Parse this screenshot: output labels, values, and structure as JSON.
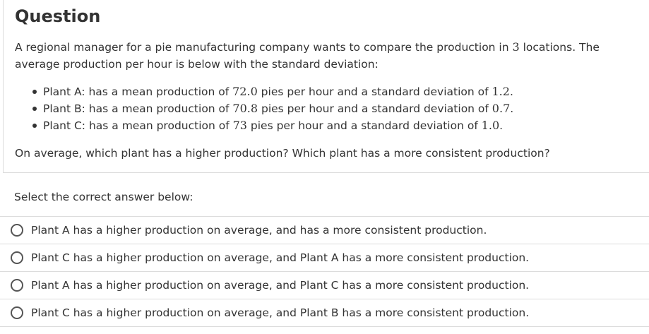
{
  "question": {
    "title": "Question",
    "intro_before": "A regional manager for a pie manufacturing company wants to compare the production in ",
    "intro_number": "3",
    "intro_after": " locations. The average production per hour is below with the standard deviation:",
    "plants": [
      {
        "prefix": "Plant A: has a mean production of ",
        "mean": "72.0",
        "middle": " pies per hour and a standard deviation of ",
        "sd": "1.2",
        "suffix": "."
      },
      {
        "prefix": "Plant B: has a mean production of ",
        "mean": "70.8",
        "middle": " pies per hour and a standard deviation of ",
        "sd": "0.7",
        "suffix": "."
      },
      {
        "prefix": "Plant C: has a mean production of ",
        "mean": "73",
        "middle": " pies per hour and a standard deviation of ",
        "sd": "1.0",
        "suffix": "."
      }
    ],
    "prompt": "On average, which plant has a higher production? Which plant has a more consistent production?"
  },
  "answers": {
    "label": "Select the correct answer below:",
    "options": [
      {
        "text": "Plant A has a higher production on average, and has a more consistent production."
      },
      {
        "text": "Plant C has a higher production on average, and Plant A has a more consistent production."
      },
      {
        "text": "Plant A has a higher production on average, and Plant C has a more consistent production."
      },
      {
        "text": "Plant C has a higher production on average, and Plant B has a more consistent production."
      }
    ]
  }
}
